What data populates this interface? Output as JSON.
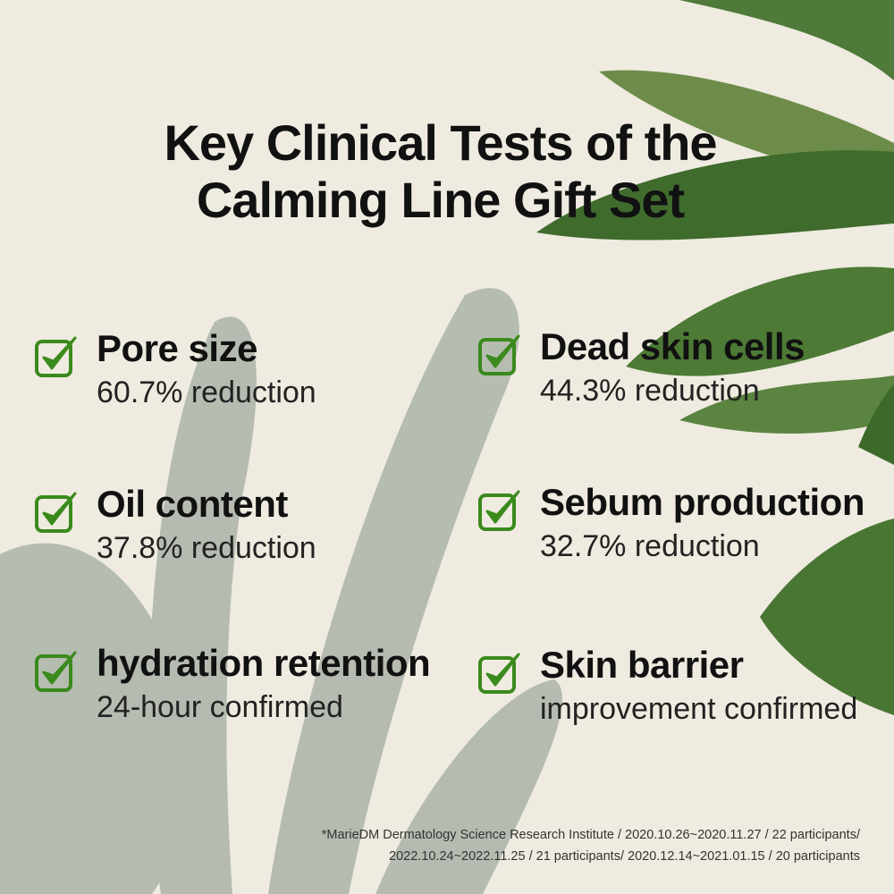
{
  "title_lines": [
    "Key Clinical Tests of the",
    "Calming Line Gift Set"
  ],
  "items": [
    {
      "label": "Pore size",
      "value": "60.7% reduction"
    },
    {
      "label": "Dead skin cells",
      "value": "44.3% reduction"
    },
    {
      "label": "Oil content",
      "value": "37.8% reduction"
    },
    {
      "label": "Sebum production",
      "value": "32.7% reduction"
    },
    {
      "label": "hydration retention",
      "value": "24-hour confirmed"
    },
    {
      "label": "Skin barrier",
      "value": "improvement confirmed"
    }
  ],
  "footnote": [
    "*MarieDM Dermatology Science Research Institute / 2020.10.26~2020.11.27 / 22 participants/",
    "2022.10.24~2022.11.25 / 21 participants/ 2020.12.14~2021.01.15 / 20 participants"
  ],
  "colors": {
    "check": "#3a8a1c",
    "background": "#efebe0",
    "leaf": "#4f7a3a",
    "shadow": "#9fa89c"
  },
  "icon": "checkbox-check-icon"
}
